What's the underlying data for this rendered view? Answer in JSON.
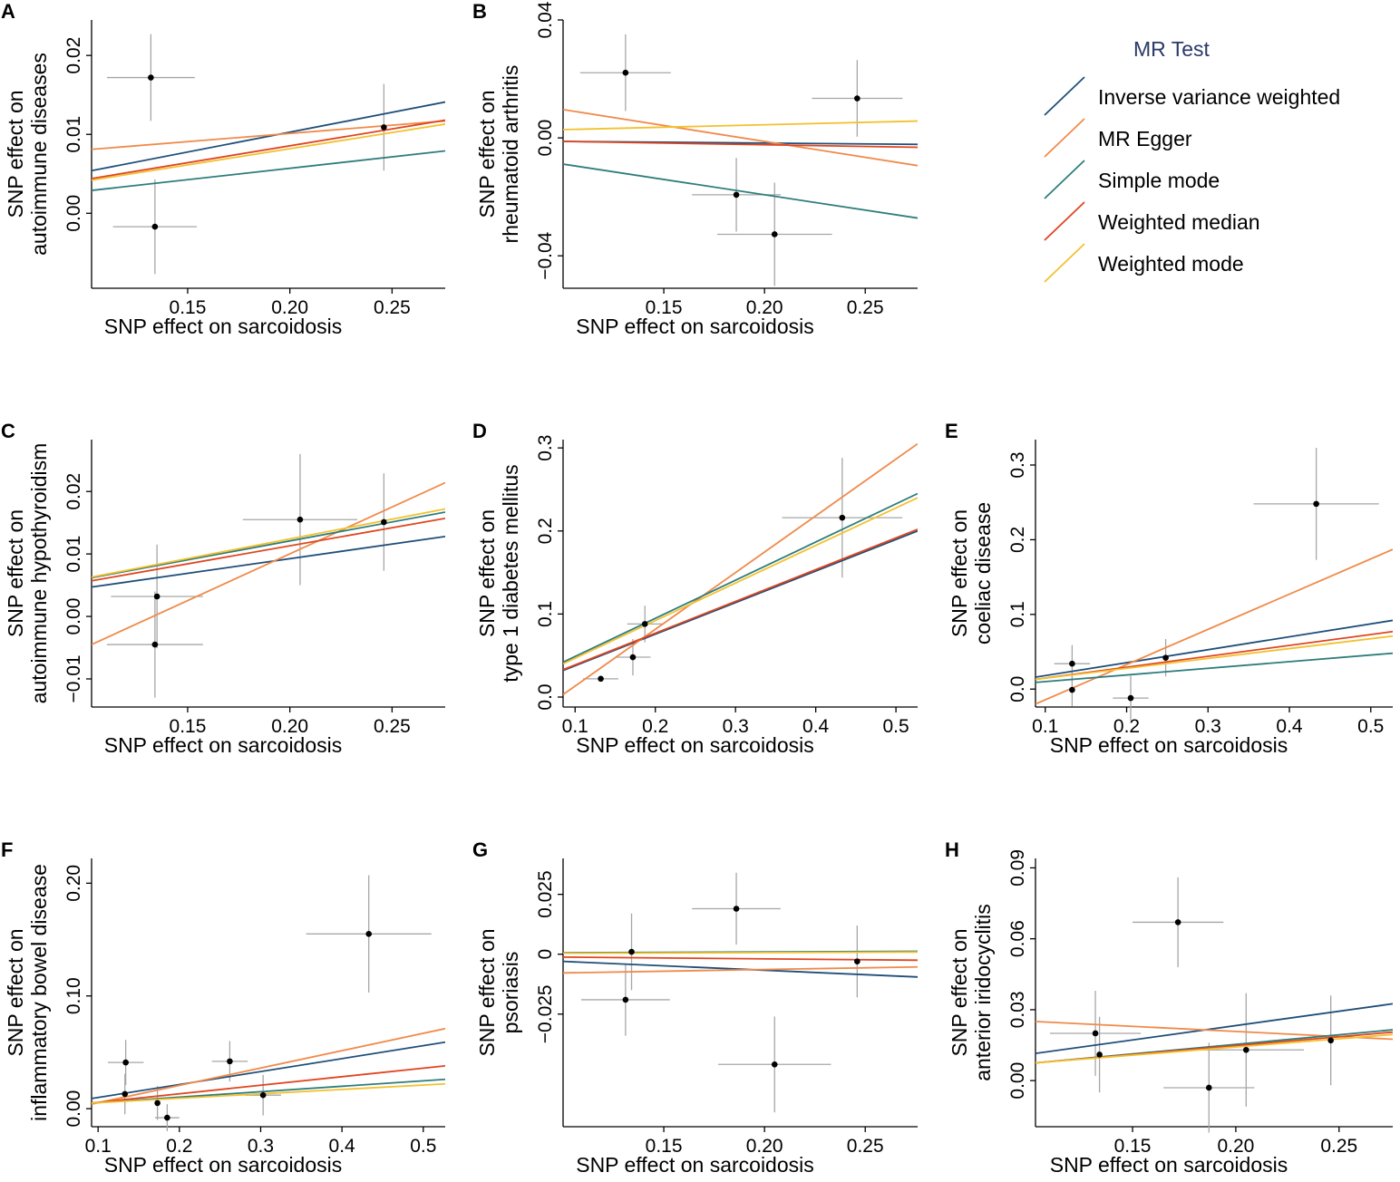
{
  "legend": {
    "title": "MR Test",
    "items": [
      {
        "label": "Inverse variance weighted",
        "color": "#1f4e79"
      },
      {
        "label": "MR Egger",
        "color": "#f08a4b"
      },
      {
        "label": "Simple mode",
        "color": "#2e7d7b"
      },
      {
        "label": "Weighted median",
        "color": "#e0451f"
      },
      {
        "label": "Weighted mode",
        "color": "#f2c12e"
      }
    ]
  },
  "chart_data": [
    {
      "panel": "A",
      "type": "scatter",
      "xlabel": "SNP effect on sarcoidosis",
      "ylabel": [
        "SNP effect on",
        "autoimmune diseases"
      ],
      "xlim": [
        0.103,
        0.276
      ],
      "ylim": [
        -0.0095,
        0.0245
      ],
      "xticks": [
        0.15,
        0.2,
        0.25
      ],
      "xtick_labels": [
        "0.15",
        "0.20",
        "0.25"
      ],
      "yticks": [
        0.0,
        0.01,
        0.02
      ],
      "ytick_labels": [
        "0.00",
        "0.01",
        "0.02"
      ],
      "points": [
        {
          "x": 0.132,
          "y": 0.0172,
          "x_err": 0.0215,
          "y_err": 0.0055
        },
        {
          "x": 0.134,
          "y": -0.0017,
          "x_err": 0.0205,
          "y_err": 0.006
        },
        {
          "x": 0.246,
          "y": 0.0109,
          "x_err": 0.0,
          "y_err": 0.0055
        }
      ],
      "lines": [
        {
          "method": "Inverse variance weighted",
          "x": [
            0.103,
            0.276
          ],
          "y": [
            0.0054,
            0.0141
          ]
        },
        {
          "method": "MR Egger",
          "x": [
            0.103,
            0.276
          ],
          "y": [
            0.0081,
            0.0117
          ]
        },
        {
          "method": "Simple mode",
          "x": [
            0.103,
            0.276
          ],
          "y": [
            0.0029,
            0.0079
          ]
        },
        {
          "method": "Weighted median",
          "x": [
            0.103,
            0.276
          ],
          "y": [
            0.0044,
            0.0118
          ]
        },
        {
          "method": "Weighted mode",
          "x": [
            0.103,
            0.276
          ],
          "y": [
            0.0042,
            0.0113
          ]
        }
      ]
    },
    {
      "panel": "B",
      "type": "scatter",
      "xlabel": "SNP effect on sarcoidosis",
      "ylabel": [
        "SNP effect on",
        "rheumatoid arthritis"
      ],
      "xlim": [
        0.1,
        0.276
      ],
      "ylim": [
        -0.051,
        0.04
      ],
      "xticks": [
        0.15,
        0.2,
        0.25
      ],
      "xtick_labels": [
        "0.15",
        "0.20",
        "0.25"
      ],
      "yticks": [
        -0.04,
        0.0,
        0.04
      ],
      "ytick_labels": [
        "−0.04",
        "0.00",
        "0.04"
      ],
      "points": [
        {
          "x": 0.131,
          "y": 0.0221,
          "x_err": 0.0225,
          "y_err": 0.013
        },
        {
          "x": 0.186,
          "y": -0.0193,
          "x_err": 0.022,
          "y_err": 0.0125
        },
        {
          "x": 0.205,
          "y": -0.0327,
          "x_err": 0.0285,
          "y_err": 0.0175
        },
        {
          "x": 0.246,
          "y": 0.0134,
          "x_err": 0.0225,
          "y_err": 0.013
        }
      ],
      "lines": [
        {
          "method": "Inverse variance weighted",
          "x": [
            0.1,
            0.276
          ],
          "y": [
            -0.0012,
            -0.0022
          ]
        },
        {
          "method": "MR Egger",
          "x": [
            0.1,
            0.276
          ],
          "y": [
            0.0096,
            -0.0094
          ]
        },
        {
          "method": "Simple mode",
          "x": [
            0.1,
            0.276
          ],
          "y": [
            -0.0089,
            -0.0272
          ]
        },
        {
          "method": "Weighted median",
          "x": [
            0.1,
            0.276
          ],
          "y": [
            -0.0012,
            -0.0032
          ]
        },
        {
          "method": "Weighted mode",
          "x": [
            0.1,
            0.276
          ],
          "y": [
            0.0028,
            0.0057
          ]
        }
      ]
    },
    {
      "panel": "C",
      "type": "scatter",
      "xlabel": "SNP effect on sarcoidosis",
      "ylabel": [
        "SNP effect on",
        "autoimmune hypothyroidism"
      ],
      "xlim": [
        0.103,
        0.276
      ],
      "ylim": [
        -0.0145,
        0.0283
      ],
      "xticks": [
        0.15,
        0.2,
        0.25
      ],
      "xtick_labels": [
        "0.15",
        "0.20",
        "0.25"
      ],
      "yticks": [
        -0.01,
        0.0,
        0.01,
        0.02
      ],
      "ytick_labels": [
        "−0.01",
        "0.00",
        "0.01",
        "0.02"
      ],
      "points": [
        {
          "x": 0.135,
          "y": 0.0032,
          "x_err": 0.0225,
          "y_err": 0.0083
        },
        {
          "x": 0.134,
          "y": -0.0045,
          "x_err": 0.0235,
          "y_err": 0.0085
        },
        {
          "x": 0.205,
          "y": 0.0155,
          "x_err": 0.028,
          "y_err": 0.0105
        },
        {
          "x": 0.246,
          "y": 0.0151,
          "x_err": 0.0,
          "y_err": 0.0078
        }
      ],
      "lines": [
        {
          "method": "Inverse variance weighted",
          "x": [
            0.103,
            0.276
          ],
          "y": [
            0.0047,
            0.0128
          ]
        },
        {
          "method": "MR Egger",
          "x": [
            0.103,
            0.276
          ],
          "y": [
            -0.0045,
            0.0214
          ]
        },
        {
          "method": "Simple mode",
          "x": [
            0.103,
            0.276
          ],
          "y": [
            0.0062,
            0.0167
          ]
        },
        {
          "method": "Weighted median",
          "x": [
            0.103,
            0.276
          ],
          "y": [
            0.0057,
            0.0157
          ]
        },
        {
          "method": "Weighted mode",
          "x": [
            0.103,
            0.276
          ],
          "y": [
            0.0063,
            0.0172
          ]
        }
      ]
    },
    {
      "panel": "D",
      "type": "scatter",
      "xlabel": "SNP effect on sarcoidosis",
      "ylabel": [
        "SNP effect on",
        "type 1 diabetes mellitus"
      ],
      "xlim": [
        0.085,
        0.527
      ],
      "ylim": [
        -0.012,
        0.31
      ],
      "xticks": [
        0.1,
        0.2,
        0.3,
        0.4,
        0.5
      ],
      "xtick_labels": [
        "0.1",
        "0.2",
        "0.3",
        "0.4",
        "0.5"
      ],
      "yticks": [
        0.0,
        0.1,
        0.2,
        0.3
      ],
      "ytick_labels": [
        "0.0",
        "0.1",
        "0.2",
        "0.3"
      ],
      "points": [
        {
          "x": 0.132,
          "y": 0.022,
          "x_err": 0.022,
          "y_err": 0.0
        },
        {
          "x": 0.172,
          "y": 0.048,
          "x_err": 0.022,
          "y_err": 0.022
        },
        {
          "x": 0.187,
          "y": 0.088,
          "x_err": 0.022,
          "y_err": 0.022
        },
        {
          "x": 0.433,
          "y": 0.216,
          "x_err": 0.075,
          "y_err": 0.072
        }
      ],
      "lines": [
        {
          "method": "Inverse variance weighted",
          "x": [
            0.085,
            0.527
          ],
          "y": [
            0.032,
            0.2
          ]
        },
        {
          "method": "MR Egger",
          "x": [
            0.085,
            0.527
          ],
          "y": [
            0.003,
            0.305
          ]
        },
        {
          "method": "Simple mode",
          "x": [
            0.085,
            0.527
          ],
          "y": [
            0.042,
            0.245
          ]
        },
        {
          "method": "Weighted median",
          "x": [
            0.085,
            0.527
          ],
          "y": [
            0.033,
            0.202
          ]
        },
        {
          "method": "Weighted mode",
          "x": [
            0.085,
            0.527
          ],
          "y": [
            0.04,
            0.24
          ]
        }
      ]
    },
    {
      "panel": "E",
      "type": "scatter",
      "xlabel": "SNP effect on sarcoidosis",
      "ylabel": [
        "SNP effect on",
        "coeliac disease"
      ],
      "xlim": [
        0.088,
        0.527
      ],
      "ylim": [
        -0.024,
        0.334
      ],
      "xticks": [
        0.1,
        0.2,
        0.3,
        0.4,
        0.5
      ],
      "xtick_labels": [
        "0.1",
        "0.2",
        "0.3",
        "0.4",
        "0.5"
      ],
      "yticks": [
        0.0,
        0.1,
        0.2,
        0.3
      ],
      "ytick_labels": [
        "0.0",
        "0.1",
        "0.2",
        "0.3"
      ],
      "points": [
        {
          "x": 0.133,
          "y": 0.034,
          "x_err": 0.022,
          "y_err": 0.025
        },
        {
          "x": 0.133,
          "y": -0.001,
          "x_err": 0.0,
          "y_err": 0.022
        },
        {
          "x": 0.205,
          "y": -0.012,
          "x_err": 0.022,
          "y_err": 0.03
        },
        {
          "x": 0.248,
          "y": 0.042,
          "x_err": 0.0,
          "y_err": 0.025
        },
        {
          "x": 0.433,
          "y": 0.248,
          "x_err": 0.077,
          "y_err": 0.075
        }
      ],
      "lines": [
        {
          "method": "Inverse variance weighted",
          "x": [
            0.088,
            0.527
          ],
          "y": [
            0.016,
            0.092
          ]
        },
        {
          "method": "MR Egger",
          "x": [
            0.088,
            0.527
          ],
          "y": [
            -0.02,
            0.187
          ]
        },
        {
          "method": "Simple mode",
          "x": [
            0.088,
            0.527
          ],
          "y": [
            0.009,
            0.048
          ]
        },
        {
          "method": "Weighted median",
          "x": [
            0.088,
            0.527
          ],
          "y": [
            0.013,
            0.077
          ]
        },
        {
          "method": "Weighted mode",
          "x": [
            0.088,
            0.527
          ],
          "y": [
            0.013,
            0.071
          ]
        }
      ]
    },
    {
      "panel": "F",
      "type": "scatter",
      "xlabel": "SNP effect on sarcoidosis",
      "ylabel": [
        "SNP effect on",
        "inflammatory bowel disease"
      ],
      "xlim": [
        0.092,
        0.527
      ],
      "ylim": [
        -0.016,
        0.222
      ],
      "xticks": [
        0.1,
        0.2,
        0.3,
        0.4,
        0.5
      ],
      "xtick_labels": [
        "0.1",
        "0.2",
        "0.3",
        "0.4",
        "0.5"
      ],
      "yticks": [
        0.0,
        0.1,
        0.2
      ],
      "ytick_labels": [
        "0.00",
        "0.10",
        "0.20"
      ],
      "points": [
        {
          "x": 0.134,
          "y": 0.041,
          "x_err": 0.022,
          "y_err": 0.02
        },
        {
          "x": 0.133,
          "y": 0.013,
          "x_err": 0.0,
          "y_err": 0.018
        },
        {
          "x": 0.173,
          "y": 0.005,
          "x_err": 0.0,
          "y_err": 0.015
        },
        {
          "x": 0.185,
          "y": -0.008,
          "x_err": 0.015,
          "y_err": 0.012
        },
        {
          "x": 0.262,
          "y": 0.042,
          "x_err": 0.022,
          "y_err": 0.018
        },
        {
          "x": 0.303,
          "y": 0.012,
          "x_err": 0.022,
          "y_err": 0.018
        },
        {
          "x": 0.433,
          "y": 0.155,
          "x_err": 0.077,
          "y_err": 0.052
        }
      ],
      "lines": [
        {
          "method": "Inverse variance weighted",
          "x": [
            0.092,
            0.527
          ],
          "y": [
            0.009,
            0.059
          ]
        },
        {
          "method": "MR Egger",
          "x": [
            0.092,
            0.527
          ],
          "y": [
            0.004,
            0.071
          ]
        },
        {
          "method": "Simple mode",
          "x": [
            0.092,
            0.527
          ],
          "y": [
            0.005,
            0.026
          ]
        },
        {
          "method": "Weighted median",
          "x": [
            0.092,
            0.527
          ],
          "y": [
            0.005,
            0.038
          ]
        },
        {
          "method": "Weighted mode",
          "x": [
            0.092,
            0.527
          ],
          "y": [
            0.005,
            0.022
          ]
        }
      ]
    },
    {
      "panel": "G",
      "type": "scatter",
      "xlabel": "SNP effect on sarcoidosis",
      "ylabel": [
        "SNP effect on",
        "psoriasis"
      ],
      "xlim": [
        0.1,
        0.276
      ],
      "ylim": [
        -0.072,
        0.04
      ],
      "xticks": [
        0.15,
        0.2,
        0.25
      ],
      "xtick_labels": [
        "0.15",
        "0.20",
        "0.25"
      ],
      "yticks": [
        -0.025,
        0.0,
        0.025
      ],
      "ytick_labels": [
        "−0.025",
        "0",
        "0.025"
      ],
      "points": [
        {
          "x": 0.134,
          "y": 0.001,
          "x_err": 0.0,
          "y_err": 0.016
        },
        {
          "x": 0.131,
          "y": -0.019,
          "x_err": 0.022,
          "y_err": 0.015
        },
        {
          "x": 0.186,
          "y": 0.019,
          "x_err": 0.022,
          "y_err": 0.015
        },
        {
          "x": 0.205,
          "y": -0.046,
          "x_err": 0.028,
          "y_err": 0.02
        },
        {
          "x": 0.246,
          "y": -0.003,
          "x_err": 0.0,
          "y_err": 0.015
        }
      ],
      "lines": [
        {
          "method": "Inverse variance weighted",
          "x": [
            0.1,
            0.276
          ],
          "y": [
            -0.003,
            -0.0095
          ]
        },
        {
          "method": "MR Egger",
          "x": [
            0.1,
            0.276
          ],
          "y": [
            -0.0078,
            -0.0053
          ]
        },
        {
          "method": "Simple mode",
          "x": [
            0.1,
            0.276
          ],
          "y": [
            0.0006,
            0.0012
          ]
        },
        {
          "method": "Weighted median",
          "x": [
            0.1,
            0.276
          ],
          "y": [
            -0.0012,
            -0.0025
          ]
        },
        {
          "method": "Weighted mode",
          "x": [
            0.1,
            0.276
          ],
          "y": [
            0.0004,
            0.0009
          ]
        }
      ]
    },
    {
      "panel": "H",
      "type": "scatter",
      "xlabel": "SNP effect on sarcoidosis",
      "ylabel": [
        "SNP effect on",
        "anterior iridocyclitis"
      ],
      "xlim": [
        0.103,
        0.276
      ],
      "ylim": [
        -0.0195,
        0.094
      ],
      "xticks": [
        0.15,
        0.2,
        0.25
      ],
      "xtick_labels": [
        "0.15",
        "0.20",
        "0.25"
      ],
      "yticks": [
        0.0,
        0.03,
        0.06,
        0.09
      ],
      "ytick_labels": [
        "0.00",
        "0.03",
        "0.06",
        "0.09"
      ],
      "points": [
        {
          "x": 0.132,
          "y": 0.02,
          "x_err": 0.022,
          "y_err": 0.018
        },
        {
          "x": 0.134,
          "y": 0.011,
          "x_err": 0.0,
          "y_err": 0.016
        },
        {
          "x": 0.172,
          "y": 0.067,
          "x_err": 0.022,
          "y_err": 0.019
        },
        {
          "x": 0.187,
          "y": -0.003,
          "x_err": 0.022,
          "y_err": 0.019
        },
        {
          "x": 0.205,
          "y": 0.013,
          "x_err": 0.028,
          "y_err": 0.024
        },
        {
          "x": 0.246,
          "y": 0.017,
          "x_err": 0.0,
          "y_err": 0.019
        }
      ],
      "lines": [
        {
          "method": "Inverse variance weighted",
          "x": [
            0.103,
            0.276
          ],
          "y": [
            0.0115,
            0.0325
          ]
        },
        {
          "method": "MR Egger",
          "x": [
            0.103,
            0.276
          ],
          "y": [
            0.025,
            0.0175
          ]
        },
        {
          "method": "Simple mode",
          "x": [
            0.103,
            0.276
          ],
          "y": [
            0.0075,
            0.0215
          ]
        },
        {
          "method": "Weighted median",
          "x": [
            0.103,
            0.276
          ],
          "y": [
            0.0075,
            0.0205
          ]
        },
        {
          "method": "Weighted mode",
          "x": [
            0.103,
            0.276
          ],
          "y": [
            0.0075,
            0.0195
          ]
        }
      ]
    }
  ]
}
